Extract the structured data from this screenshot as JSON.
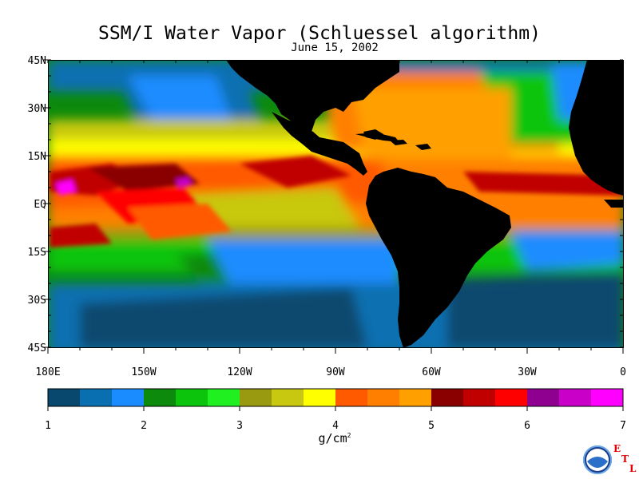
{
  "title": "SSM/I Water Vapor (Schluessel algorithm)",
  "subtitle": "June 15, 2002",
  "latitude_labels": [
    "45N",
    "30N",
    "15N",
    "EQ",
    "15S",
    "30S",
    "45S"
  ],
  "longitude_labels": [
    "180E",
    "150W",
    "120W",
    "90W",
    "60W",
    "30W",
    "0"
  ],
  "colorbar": {
    "tick_labels": [
      "1",
      "2",
      "3",
      "4",
      "5",
      "6",
      "7"
    ],
    "units_label": "g/cm",
    "units_superscript": "2",
    "colors": [
      "#08486e",
      "#0a6fb0",
      "#1a8cff",
      "#0c8a0c",
      "#0cc40c",
      "#20f020",
      "#9a9a10",
      "#c8c810",
      "#ffff00",
      "#ff5a00",
      "#ff8000",
      "#ffa000",
      "#8a0000",
      "#c00000",
      "#ff0000",
      "#900090",
      "#c800c8",
      "#ff00ff"
    ]
  },
  "logo": {
    "agency": "NOAA",
    "letters": [
      "E",
      "T",
      "L"
    ]
  },
  "chart_data": {
    "type": "heatmap",
    "title": "SSM/I Water Vapor (Schluessel algorithm)",
    "subtitle": "June 15, 2002",
    "x_axis": {
      "labels": [
        "180E",
        "150W",
        "120W",
        "90W",
        "60W",
        "30W",
        "0"
      ],
      "range": [
        -180,
        0
      ]
    },
    "y_axis": {
      "labels": [
        "45N",
        "30N",
        "15N",
        "EQ",
        "15S",
        "30S",
        "45S"
      ],
      "range": [
        45,
        -45
      ]
    },
    "colorbar_range": [
      1,
      7
    ],
    "colorbar_units": "g/cm²",
    "land_color": "#000000"
  }
}
